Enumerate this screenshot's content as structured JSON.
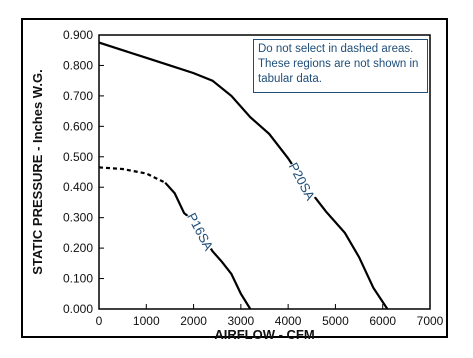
{
  "chart_data": {
    "type": "line",
    "xlabel": "AIRFLOW - CFM",
    "ylabel": "STATIC PRESSURE - Inches W.G.",
    "xlim": [
      0,
      7000
    ],
    "ylim": [
      0,
      0.9
    ],
    "x_ticks": [
      0,
      1000,
      2000,
      3000,
      4000,
      5000,
      6000,
      7000
    ],
    "y_ticks": [
      "0.000",
      "0.100",
      "0.200",
      "0.300",
      "0.400",
      "0.500",
      "0.600",
      "0.700",
      "0.800",
      "0.900"
    ],
    "grid": false,
    "annotation": "Do not select in dashed areas. These regions are not shown in tabular data.",
    "series": [
      {
        "name": "P20SA",
        "x": [
          0,
          500,
          1000,
          1500,
          2000,
          2400,
          2800,
          3200,
          3600,
          4000,
          4400,
          4800,
          5200,
          5500,
          5800,
          6100
        ],
        "y": [
          0.875,
          0.85,
          0.825,
          0.8,
          0.775,
          0.75,
          0.7,
          0.63,
          0.575,
          0.495,
          0.4,
          0.32,
          0.25,
          0.17,
          0.07,
          0.0
        ],
        "dashed_until_x": null
      },
      {
        "name": "P16SA",
        "x": [
          0,
          500,
          1000,
          1400,
          1600,
          1800,
          2000,
          2200,
          2400,
          2600,
          2800,
          3000,
          3200
        ],
        "y": [
          0.465,
          0.46,
          0.445,
          0.415,
          0.38,
          0.315,
          0.29,
          0.24,
          0.19,
          0.155,
          0.115,
          0.05,
          0.0
        ],
        "dashed_until_x": 1400
      }
    ]
  }
}
